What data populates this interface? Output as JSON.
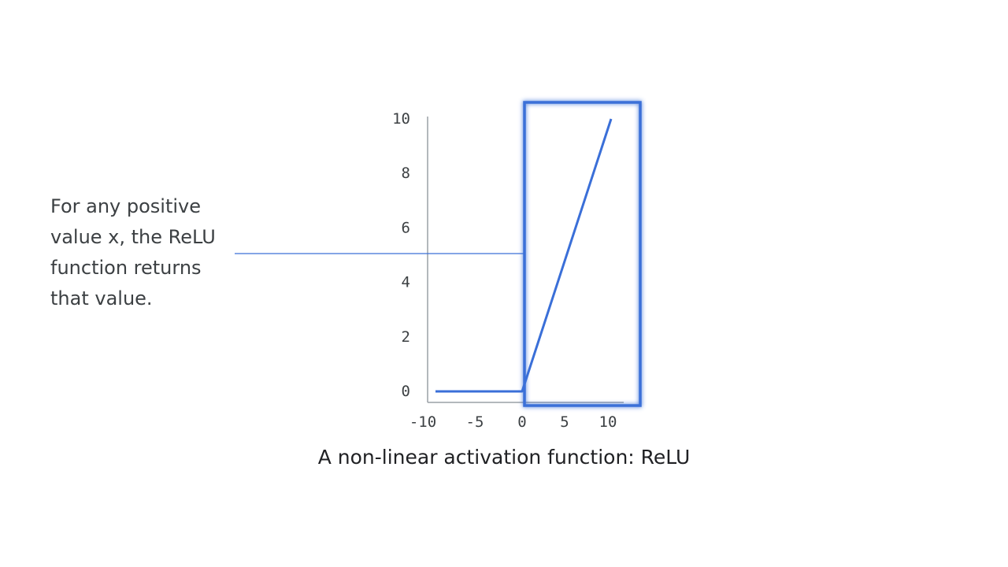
{
  "annotation": {
    "text": "For any positive\nvalue x, the ReLU\nfunction returns\nthat value."
  },
  "caption": {
    "text": "A non-linear activation function: ReLU"
  },
  "colors": {
    "series": "#3a6fd8",
    "highlight": "#3a6fd8",
    "axis": "#9aa0a6",
    "text": "#3c4043"
  },
  "chart_data": {
    "type": "line",
    "title": "",
    "xlabel": "",
    "ylabel": "",
    "xlim": [
      -10,
      10
    ],
    "ylim": [
      0,
      10
    ],
    "xticks": [
      -10,
      -5,
      0,
      5,
      10
    ],
    "xtick_labels": [
      "-10",
      "-5",
      "0",
      "5",
      "10"
    ],
    "yticks": [
      0,
      2,
      4,
      6,
      8,
      10
    ],
    "ytick_labels": [
      "0",
      "2",
      "4",
      "6",
      "8",
      "10"
    ],
    "grid": false,
    "series": [
      {
        "x": [
          -10,
          0,
          10
        ],
        "values": [
          0,
          0,
          10
        ]
      }
    ],
    "highlight_region": {
      "x": [
        0,
        13
      ]
    }
  }
}
